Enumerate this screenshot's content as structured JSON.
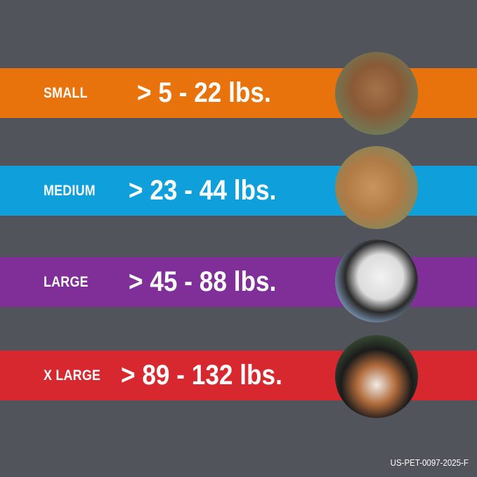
{
  "colors": {
    "background": "#52545c",
    "small": "#e8730c",
    "medium": "#0fa0dc",
    "large": "#7f2f97",
    "x_large": "#d7282f"
  },
  "sizes": [
    {
      "label": "SMALL",
      "range": "> 5 - 22 lbs.",
      "image": "small-terrier-dog-photo"
    },
    {
      "label": "MEDIUM",
      "range": "> 23 - 44 lbs.",
      "image": "cocker-spaniel-dog-photo"
    },
    {
      "label": "LARGE",
      "range": "> 45 - 88 lbs.",
      "image": "dalmatian-dog-photo"
    },
    {
      "label": "X LARGE",
      "range": "> 89 - 132 lbs.",
      "image": "bernese-mountain-dog-photo"
    }
  ],
  "footer_code": "US-PET-0097-2025-F"
}
